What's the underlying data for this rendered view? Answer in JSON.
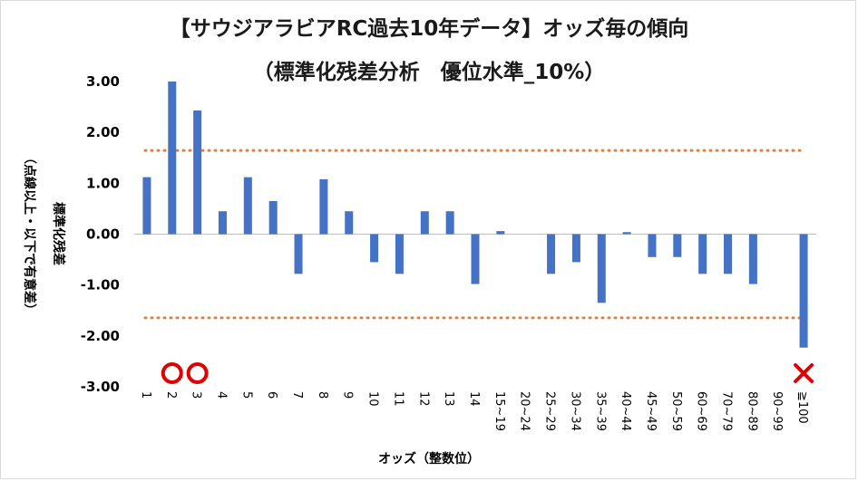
{
  "chart_data": {
    "type": "bar",
    "title": "【サウジアラビアRC過去10年データ】オッズ毎の傾向",
    "subtitle": "（標準化残差分析　優位水準_10%）",
    "xlabel": "オッズ（整数位）",
    "ylabel": "標準化残差",
    "ylabel_note": "（点線以上・以下で有意差）",
    "ylim": [
      -3.0,
      3.0
    ],
    "yticks": [
      "3.00",
      "2.00",
      "1.00",
      "0.00",
      "-1.00",
      "-2.00",
      "-3.00"
    ],
    "threshold": 1.645,
    "categories": [
      "1",
      "2",
      "3",
      "4",
      "5",
      "6",
      "7",
      "8",
      "9",
      "10",
      "11",
      "12",
      "13",
      "14",
      "15~19",
      "20~24",
      "25~29",
      "30~34",
      "35~39",
      "40~44",
      "45~49",
      "50~59",
      "60~69",
      "70~79",
      "80~89",
      "90~99",
      "≧100"
    ],
    "values": [
      1.12,
      3.0,
      2.43,
      0.45,
      1.12,
      0.65,
      -0.78,
      1.08,
      0.45,
      -0.55,
      -0.78,
      0.45,
      0.45,
      -0.98,
      0.06,
      0.0,
      -0.78,
      -0.55,
      -1.35,
      0.04,
      -0.45,
      -0.45,
      -0.78,
      -0.78,
      -0.98,
      0.0,
      -2.23
    ],
    "grid": false,
    "legend": "none",
    "colors": {
      "bar": "#4472c4",
      "threshold_line": "#ed7d31",
      "marker_good": "#e00000",
      "marker_bad": "#e00000"
    },
    "markers": [
      {
        "category": "2",
        "symbol": "○"
      },
      {
        "category": "3",
        "symbol": "○"
      },
      {
        "category": "≧100",
        "symbol": "×"
      }
    ]
  }
}
